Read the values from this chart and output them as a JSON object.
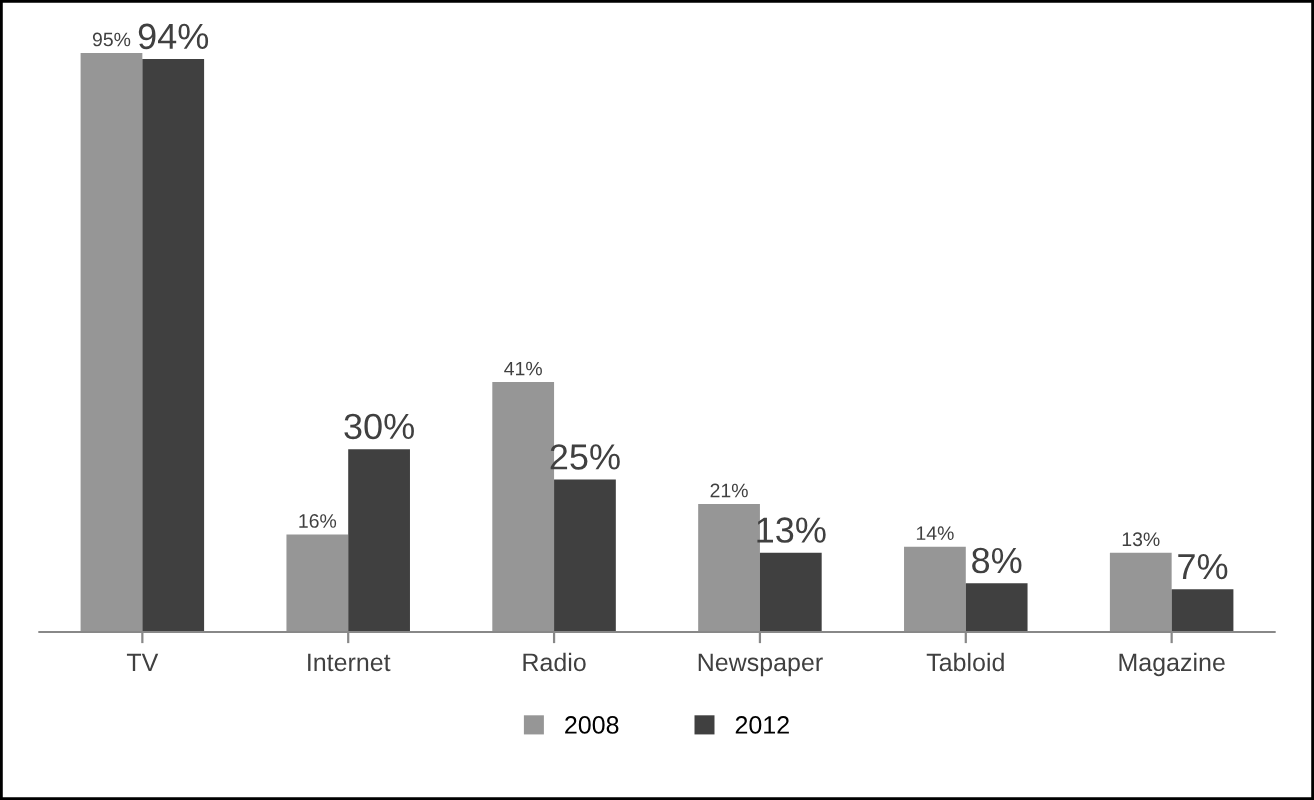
{
  "chart_data": {
    "type": "bar",
    "categories": [
      "TV",
      "Internet",
      "Radio",
      "Newspaper",
      "Tabloid",
      "Magazine"
    ],
    "series": [
      {
        "name": "2008",
        "color": "#969696",
        "values": [
          95,
          16,
          41,
          21,
          14,
          13
        ],
        "value_labels": [
          "95%",
          "16%",
          "41%",
          "21%",
          "14%",
          "13%"
        ]
      },
      {
        "name": "2012",
        "color": "#404040",
        "values": [
          94,
          30,
          25,
          13,
          8,
          7
        ],
        "value_labels": [
          "94%",
          "30%",
          "25%",
          "13%",
          "8%",
          "7%"
        ]
      }
    ],
    "legend": "bottom",
    "grid": false
  }
}
